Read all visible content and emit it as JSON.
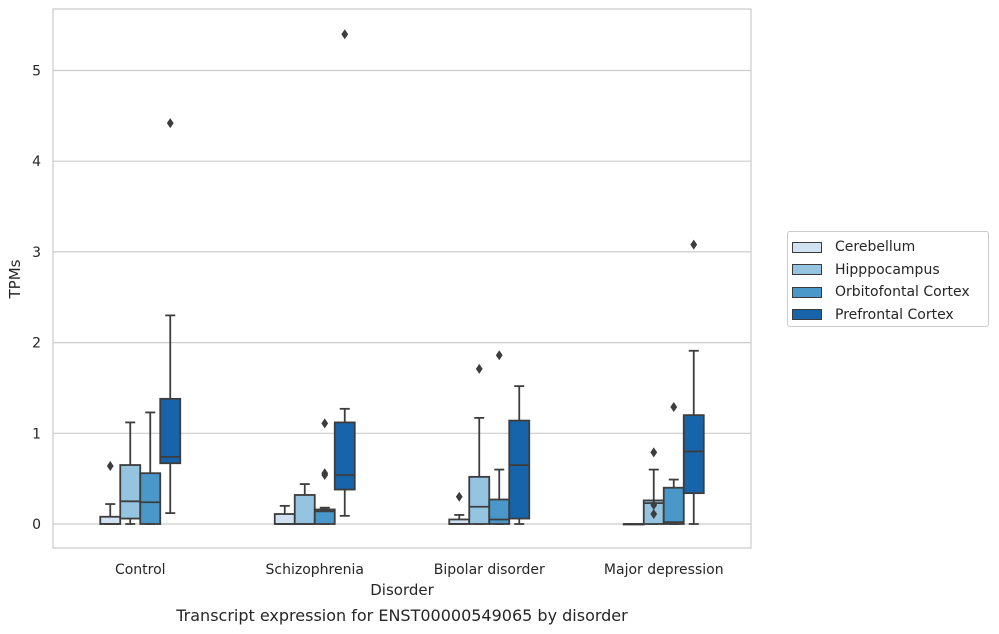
{
  "chart_data": {
    "type": "box",
    "title": "",
    "caption": "Transcript expression for ENST00000549065 by disorder",
    "xlabel": "Disorder",
    "ylabel": "TPMs",
    "ylim": [
      -0.26,
      5.65
    ],
    "yticks": [
      0,
      1,
      2,
      3,
      4,
      5
    ],
    "grid": true,
    "legend_position": "right",
    "categories": [
      "Control",
      "Schizophrenia",
      "Bipolar disorder",
      "Major depression"
    ],
    "series": [
      {
        "name": "Cerebellum",
        "color": "#d0e1f2",
        "boxes": [
          {
            "whislo": 0,
            "q1": 0,
            "med": 0.0,
            "q3": 0.08,
            "whishi": 0.22,
            "fliers": [
              0.64
            ]
          },
          {
            "whislo": 0,
            "q1": 0,
            "med": 0.0,
            "q3": 0.11,
            "whishi": 0.2,
            "fliers": []
          },
          {
            "whislo": 0,
            "q1": 0,
            "med": 0.0,
            "q3": 0.05,
            "whishi": 0.1,
            "fliers": [
              0.3
            ]
          },
          {
            "whislo": 0,
            "q1": 0,
            "med": 0.0,
            "q3": 0.0,
            "whishi": 0.0,
            "fliers": []
          }
        ]
      },
      {
        "name": "Hipppocampus",
        "color": "#94c4df",
        "boxes": [
          {
            "whislo": 0,
            "q1": 0.06,
            "med": 0.25,
            "q3": 0.65,
            "whishi": 1.12,
            "fliers": []
          },
          {
            "whislo": 0,
            "q1": 0,
            "med": 0.0,
            "q3": 0.32,
            "whishi": 0.44,
            "fliers": []
          },
          {
            "whislo": 0,
            "q1": 0,
            "med": 0.19,
            "q3": 0.52,
            "whishi": 1.17,
            "fliers": [
              1.71
            ]
          },
          {
            "whislo": 0,
            "q1": 0,
            "med": 0.23,
            "q3": 0.26,
            "whishi": 0.6,
            "fliers": [
              0.11,
              0.21,
              0.79
            ]
          }
        ]
      },
      {
        "name": "Orbitofontal Cortex",
        "color": "#4a98c9",
        "boxes": [
          {
            "whislo": 0,
            "q1": 0,
            "med": 0.24,
            "q3": 0.56,
            "whishi": 1.23,
            "fliers": []
          },
          {
            "whislo": 0,
            "q1": 0,
            "med": 0.14,
            "q3": 0.16,
            "whishi": 0.18,
            "fliers": [
              0.54,
              0.56,
              1.11
            ]
          },
          {
            "whislo": 0,
            "q1": 0,
            "med": 0.05,
            "q3": 0.27,
            "whishi": 0.6,
            "fliers": [
              1.86
            ]
          },
          {
            "whislo": 0,
            "q1": 0,
            "med": 0.02,
            "q3": 0.4,
            "whishi": 0.49,
            "fliers": [
              1.29
            ]
          }
        ]
      },
      {
        "name": "Prefrontal Cortex",
        "color": "#1764ab",
        "boxes": [
          {
            "whislo": 0.12,
            "q1": 0.67,
            "med": 0.74,
            "q3": 1.38,
            "whishi": 2.3,
            "fliers": [
              4.42
            ]
          },
          {
            "whislo": 0.09,
            "q1": 0.38,
            "med": 0.54,
            "q3": 1.12,
            "whishi": 1.27,
            "fliers": [
              5.4
            ]
          },
          {
            "whislo": 0,
            "q1": 0.06,
            "med": 0.65,
            "q3": 1.14,
            "whishi": 1.52,
            "fliers": []
          },
          {
            "whislo": 0,
            "q1": 0.34,
            "med": 0.8,
            "q3": 1.2,
            "whishi": 1.91,
            "fliers": [
              3.08
            ]
          }
        ]
      }
    ]
  }
}
